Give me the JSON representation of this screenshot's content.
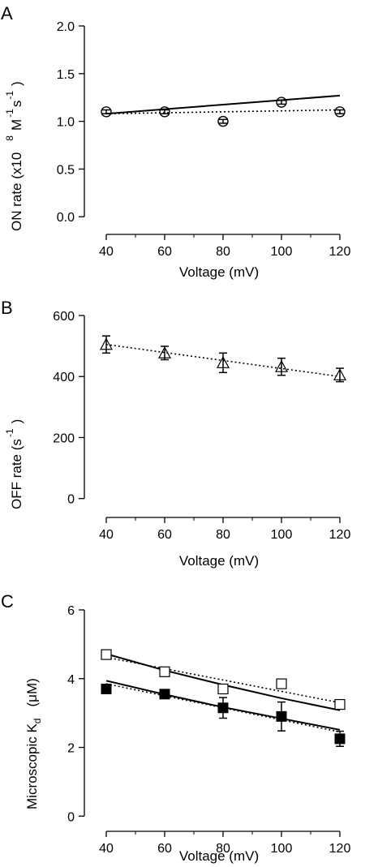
{
  "chart_data": [
    {
      "panel": "A",
      "type": "scatter",
      "xlabel": "Voltage (mV)",
      "ylabel_main": "ON rate (x10",
      "ylabel_exp8": "8",
      "ylabel_unit_M": "M",
      "ylabel_exp_m1a": "-1",
      "ylabel_unit_s": "s",
      "ylabel_exp_m1b": "-1",
      "ylabel_close": ")",
      "xlim": [
        34,
        125
      ],
      "ylim": [
        -0.1,
        2.0
      ],
      "xticks": [
        "40",
        "60",
        "80",
        "100",
        "120"
      ],
      "yticks": [
        "0.0",
        "0.5",
        "1.0",
        "1.5",
        "2.0"
      ],
      "series": [
        {
          "marker": "open-circle",
          "x": [
            40,
            60,
            80,
            100,
            120
          ],
          "y": [
            1.1,
            1.1,
            1.0,
            1.2,
            1.1
          ],
          "err": [
            0.02,
            0.02,
            0.02,
            0.02,
            0.02
          ]
        }
      ],
      "fits": [
        {
          "style": "solid",
          "x": [
            40,
            120
          ],
          "y": [
            1.08,
            1.27
          ]
        },
        {
          "style": "dotted",
          "x": [
            40,
            120
          ],
          "y": [
            1.08,
            1.12
          ]
        }
      ]
    },
    {
      "panel": "B",
      "type": "scatter",
      "xlabel": "Voltage (mV)",
      "ylabel_main": "OFF rate (s",
      "ylabel_exp": "-1",
      "ylabel_close": ")",
      "xlim": [
        34,
        125
      ],
      "ylim": [
        -30,
        600
      ],
      "xticks": [
        "40",
        "60",
        "80",
        "100",
        "120"
      ],
      "yticks": [
        "0",
        "200",
        "400",
        "600"
      ],
      "series": [
        {
          "marker": "open-triangle",
          "x": [
            40,
            60,
            80,
            100,
            120
          ],
          "y": [
            505,
            477,
            445,
            432,
            405
          ],
          "err": [
            28,
            22,
            32,
            28,
            22
          ]
        }
      ],
      "fits": [
        {
          "style": "dotted",
          "x": [
            40,
            120
          ],
          "y": [
            505,
            400
          ]
        }
      ]
    },
    {
      "panel": "C",
      "type": "scatter",
      "xlabel": "Voltage (mV)",
      "ylabel_main": "Microscopic K",
      "ylabel_sub": "d",
      "ylabel_unit": "(μM)",
      "xlim": [
        34,
        125
      ],
      "ylim": [
        -0.3,
        6
      ],
      "xticks": [
        "40",
        "60",
        "80",
        "100",
        "120"
      ],
      "yticks": [
        "0",
        "2",
        "4",
        "6"
      ],
      "series": [
        {
          "marker": "open-square",
          "x": [
            40,
            60,
            80,
            100,
            120
          ],
          "y": [
            4.7,
            4.2,
            3.7,
            3.85,
            3.25
          ],
          "err": [
            0,
            0,
            0,
            0,
            0
          ]
        },
        {
          "marker": "filled-square",
          "x": [
            40,
            60,
            80,
            100,
            120
          ],
          "y": [
            3.7,
            3.55,
            3.15,
            2.9,
            2.25
          ],
          "err": [
            0,
            0.12,
            0.3,
            0.42,
            0.22
          ]
        }
      ],
      "fits": [
        {
          "style": "solid",
          "x": [
            40,
            60,
            80,
            100,
            120
          ],
          "y": [
            4.72,
            4.24,
            3.82,
            3.43,
            3.08
          ]
        },
        {
          "style": "dotted",
          "x": [
            40,
            120
          ],
          "y": [
            4.62,
            3.3
          ]
        },
        {
          "style": "solid",
          "x": [
            40,
            60,
            80,
            100,
            120
          ],
          "y": [
            3.94,
            3.54,
            3.17,
            2.84,
            2.51
          ]
        },
        {
          "style": "dotted",
          "x": [
            40,
            120
          ],
          "y": [
            3.85,
            2.45
          ]
        }
      ]
    }
  ]
}
